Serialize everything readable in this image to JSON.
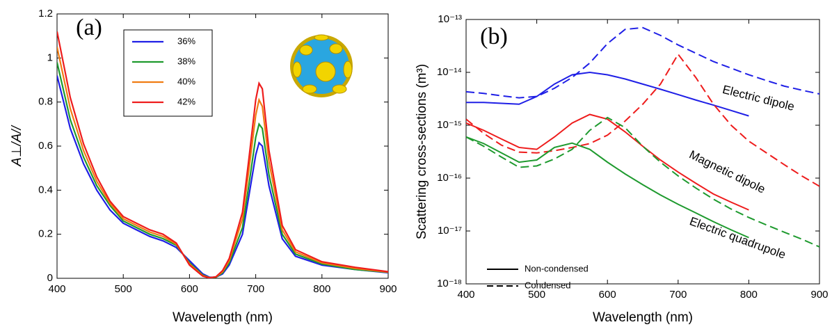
{
  "chart_data": [
    {
      "type": "line",
      "panel_label": "(a)",
      "xlabel": "Wavelength (nm)",
      "ylabel": "A⊥/A//",
      "xlim": [
        400,
        900
      ],
      "xticks": [
        400,
        500,
        600,
        700,
        800,
        900
      ],
      "ylim": [
        0,
        1.2
      ],
      "yticks": [
        0,
        0.2,
        0.4,
        0.6,
        0.8,
        1,
        1.2
      ],
      "x": [
        400,
        420,
        440,
        460,
        480,
        500,
        520,
        540,
        560,
        580,
        600,
        620,
        630,
        640,
        650,
        660,
        680,
        690,
        700,
        705,
        710,
        720,
        740,
        760,
        800,
        850,
        900
      ],
      "series": [
        {
          "name": "36%",
          "color": "#1f1fe6",
          "values": [
            0.92,
            0.68,
            0.52,
            0.4,
            0.31,
            0.25,
            0.22,
            0.19,
            0.17,
            0.14,
            0.08,
            0.02,
            0.005,
            0.005,
            0.02,
            0.06,
            0.2,
            0.38,
            0.56,
            0.615,
            0.6,
            0.42,
            0.18,
            0.1,
            0.06,
            0.04,
            0.025
          ]
        },
        {
          "name": "38%",
          "color": "#1e9a2e",
          "values": [
            0.98,
            0.72,
            0.55,
            0.42,
            0.33,
            0.26,
            0.23,
            0.2,
            0.18,
            0.15,
            0.07,
            0.015,
            0.003,
            0.005,
            0.025,
            0.07,
            0.23,
            0.43,
            0.64,
            0.7,
            0.68,
            0.47,
            0.2,
            0.11,
            0.065,
            0.04,
            0.027
          ]
        },
        {
          "name": "40%",
          "color": "#f07c12",
          "values": [
            1.05,
            0.77,
            0.58,
            0.44,
            0.34,
            0.27,
            0.24,
            0.21,
            0.19,
            0.155,
            0.065,
            0.012,
            0.003,
            0.006,
            0.03,
            0.08,
            0.27,
            0.5,
            0.74,
            0.81,
            0.78,
            0.53,
            0.22,
            0.12,
            0.07,
            0.045,
            0.028
          ]
        },
        {
          "name": "42%",
          "color": "#ee1c1c",
          "values": [
            1.12,
            0.82,
            0.61,
            0.46,
            0.35,
            0.28,
            0.25,
            0.22,
            0.2,
            0.16,
            0.06,
            0.01,
            0.002,
            0.007,
            0.035,
            0.09,
            0.3,
            0.55,
            0.81,
            0.885,
            0.86,
            0.58,
            0.24,
            0.13,
            0.075,
            0.05,
            0.03
          ]
        }
      ]
    },
    {
      "type": "line",
      "panel_label": "(b)",
      "xlabel": "Wavelength (nm)",
      "ylabel": "Scattering cross-sections (m³)",
      "log_y": true,
      "xlim": [
        400,
        900
      ],
      "xticks": [
        400,
        500,
        600,
        700,
        800,
        900
      ],
      "ylim": [
        1e-18,
        1e-13
      ],
      "yticks": [
        {
          "value": 1e-18,
          "label": "10⁻¹⁸"
        },
        {
          "value": 1e-17,
          "label": "10⁻¹⁷"
        },
        {
          "value": 1e-16,
          "label": "10⁻¹⁶"
        },
        {
          "value": 1e-15,
          "label": "10⁻¹⁵"
        },
        {
          "value": 1e-14,
          "label": "10⁻¹⁴"
        },
        {
          "value": 1e-13,
          "label": "10⁻¹³"
        }
      ],
      "annotations": [
        {
          "text": "Electric dipole",
          "color": "#1f1fe6"
        },
        {
          "text": "Magnetic dipole",
          "color": "#ee1c1c"
        },
        {
          "text": "Electric quadrupole",
          "color": "#1e9a2e"
        }
      ],
      "line_styles": [
        {
          "name": "Non-condensed",
          "dash": "solid",
          "x": [
            400,
            425,
            450,
            475,
            500,
            525,
            550,
            575,
            600,
            625,
            650,
            675,
            700,
            725,
            750,
            775,
            800
          ]
        },
        {
          "name": "Condensed",
          "dash": "dashed",
          "x": [
            400,
            425,
            450,
            475,
            500,
            525,
            550,
            575,
            600,
            625,
            650,
            675,
            700,
            725,
            750,
            775,
            800,
            825,
            850,
            875,
            900
          ]
        }
      ],
      "series": [
        {
          "annotation": 0,
          "style": 0,
          "values": [
            2.7e-15,
            2.7e-15,
            2.6e-15,
            2.5e-15,
            3.5e-15,
            6e-15,
            9e-15,
            1e-14,
            9e-15,
            7.5e-15,
            6e-15,
            4.8e-15,
            3.8e-15,
            3e-15,
            2.4e-15,
            1.9e-15,
            1.5e-15
          ]
        },
        {
          "annotation": 0,
          "style": 1,
          "values": [
            4.3e-15,
            4e-15,
            3.6e-15,
            3.3e-15,
            3.5e-15,
            5e-15,
            8e-15,
            1.5e-14,
            3.5e-14,
            6.5e-14,
            7e-14,
            5e-14,
            3.3e-14,
            2.3e-14,
            1.6e-14,
            1.2e-14,
            9e-15,
            7e-15,
            5.5e-15,
            4.6e-15,
            3.9e-15
          ]
        },
        {
          "annotation": 1,
          "style": 0,
          "values": [
            1.1e-15,
            8e-16,
            5.5e-16,
            3.8e-16,
            3.5e-16,
            6e-16,
            1.1e-15,
            1.6e-15,
            1.3e-15,
            7.5e-16,
            4e-16,
            2.2e-16,
            1.3e-16,
            8e-17,
            5e-17,
            3.5e-17,
            2.5e-17
          ]
        },
        {
          "annotation": 1,
          "style": 1,
          "values": [
            1.3e-15,
            7e-16,
            4.2e-16,
            3.1e-16,
            3e-16,
            3.3e-16,
            3.8e-16,
            4.5e-16,
            6.5e-16,
            1.2e-15,
            2.5e-15,
            6e-15,
            2.2e-14,
            8e-15,
            2.5e-15,
            1e-15,
            5e-16,
            3e-16,
            1.8e-16,
            1.1e-16,
            7e-17
          ]
        },
        {
          "annotation": 2,
          "style": 0,
          "values": [
            6e-16,
            4.5e-16,
            3e-16,
            2e-16,
            2.2e-16,
            3.8e-16,
            4.6e-16,
            3.5e-16,
            2e-16,
            1.2e-16,
            7.5e-17,
            4.8e-17,
            3.2e-17,
            2.2e-17,
            1.5e-17,
            1.05e-17,
            7.5e-18
          ]
        },
        {
          "annotation": 2,
          "style": 1,
          "values": [
            6e-16,
            4e-16,
            2.5e-16,
            1.6e-16,
            1.7e-16,
            2.3e-16,
            3.5e-16,
            8e-16,
            1.4e-15,
            9e-16,
            4e-16,
            2e-16,
            1.1e-16,
            6.5e-17,
            4e-17,
            2.6e-17,
            1.8e-17,
            1.3e-17,
            9.5e-18,
            7e-18,
            5e-18
          ]
        }
      ]
    }
  ]
}
